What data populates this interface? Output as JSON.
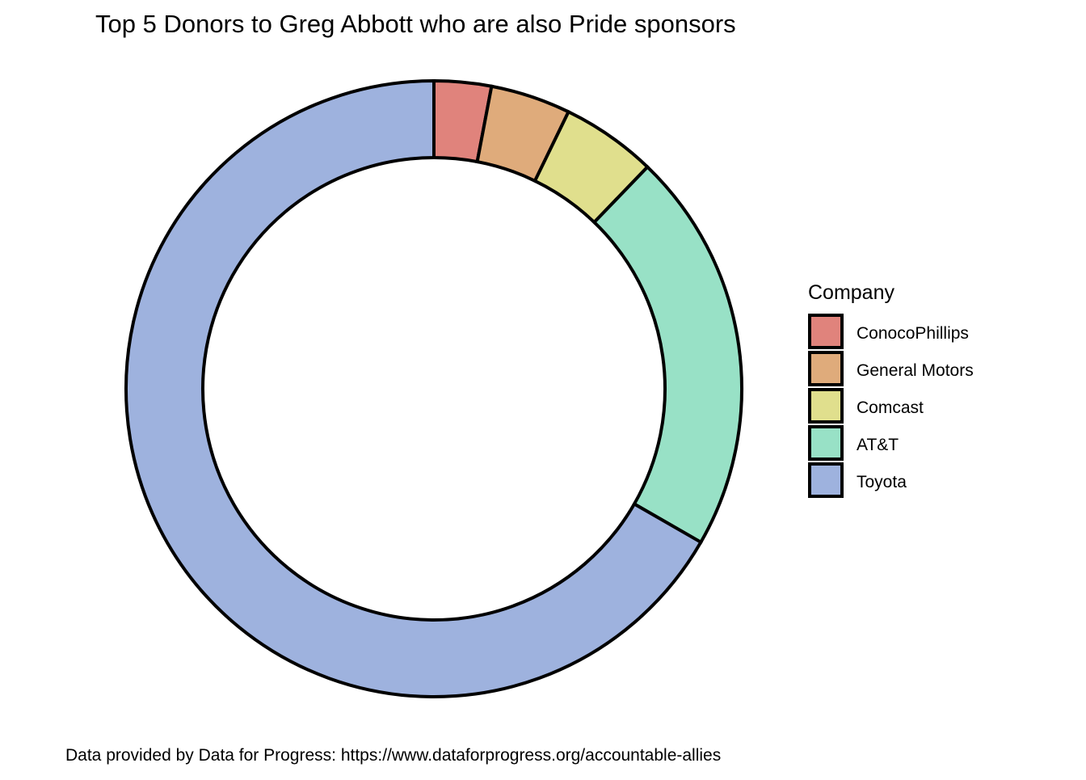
{
  "chart_data": {
    "type": "pie",
    "variant": "donut",
    "title": "Top 5 Donors to Greg Abbott who are also Pride sponsors",
    "caption": "Data provided by Data for Progress: https://www.dataforprogress.org/accountable-allies",
    "legend": {
      "title": "Company",
      "position": "right"
    },
    "categories": [
      "ConocoPhillips",
      "General Motors",
      "Comcast",
      "AT&T",
      "Toyota"
    ],
    "values": [
      3.0,
      4.2,
      5.0,
      21.1,
      66.7
    ],
    "colors": [
      "#E0837C",
      "#DFAB7B",
      "#E0DF8D",
      "#98E1C6",
      "#9EB2DE"
    ],
    "start": "12 o'clock",
    "direction": "clockwise",
    "outline_color": "#000000"
  }
}
